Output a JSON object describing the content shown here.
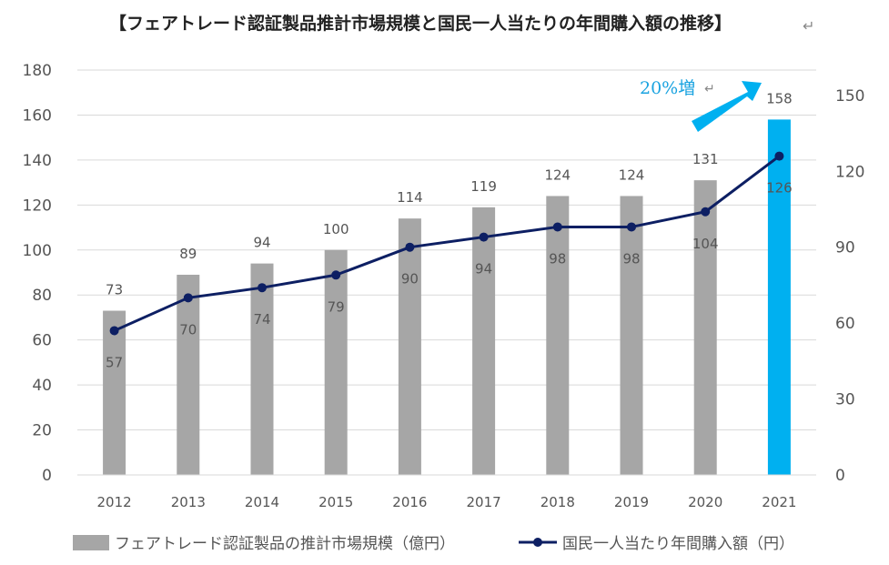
{
  "chart_data": {
    "type": "bar",
    "title": "【フェアトレード認証製品推計市場規模と国民一人当たりの年間購入額の推移】",
    "title_mark": "↵",
    "categories": [
      "2012",
      "2013",
      "2014",
      "2015",
      "2016",
      "2017",
      "2018",
      "2019",
      "2020",
      "2021"
    ],
    "series": [
      {
        "name": "フェアトレード認証製品の推計市場規模（億円）",
        "kind": "bar",
        "axis": "left",
        "values": [
          73,
          89,
          94,
          100,
          114,
          119,
          124,
          124,
          131,
          158
        ],
        "color": "#a6a6a6",
        "highlight_color": "#00b0f0",
        "highlight_index": 9
      },
      {
        "name": "国民一人当たり年間購入額（円）",
        "kind": "line",
        "axis": "right",
        "values": [
          57,
          70,
          74,
          79,
          90,
          94,
          98,
          98,
          104,
          126
        ],
        "color": "#0d1f63"
      }
    ],
    "y_left": {
      "min": 0,
      "max": 180,
      "ticks": [
        0,
        20,
        40,
        60,
        80,
        100,
        120,
        140,
        160,
        180
      ]
    },
    "y_right": {
      "min": 0,
      "max": 160,
      "ticks": [
        0,
        30,
        60,
        90,
        120,
        150
      ]
    },
    "grid": true,
    "legend_position": "bottom",
    "annotation": {
      "text": "20%増",
      "mark": "↵",
      "arrow_color": "#00b0f0"
    }
  }
}
